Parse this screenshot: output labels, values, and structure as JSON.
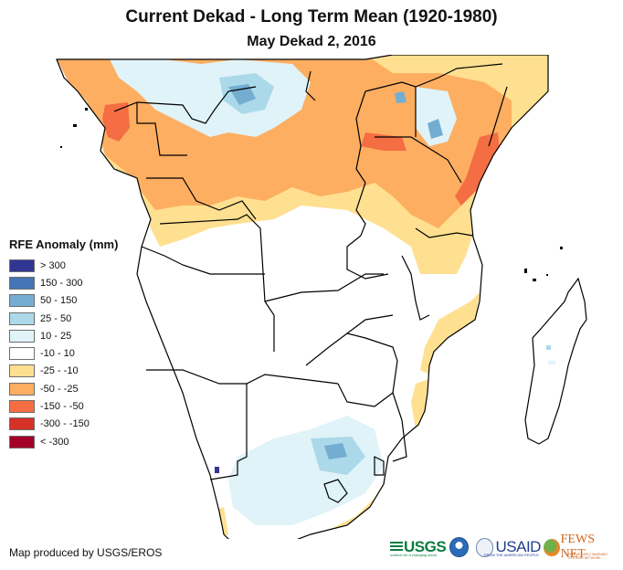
{
  "header": {
    "title": "Current Dekad - Long Term Mean (1920-1980)",
    "subtitle": "May Dekad 2, 2016"
  },
  "legend": {
    "title": "RFE Anomaly (mm)",
    "items": [
      {
        "label": "> 300",
        "color": "#313695"
      },
      {
        "label": "150 - 300",
        "color": "#4575b4"
      },
      {
        "label": "50 - 150",
        "color": "#74add1"
      },
      {
        "label": "25 - 50",
        "color": "#abd9e9"
      },
      {
        "label": "10 - 25",
        "color": "#e0f3f8"
      },
      {
        "label": "-10 - 10",
        "color": "#ffffff"
      },
      {
        "label": "-25 - -10",
        "color": "#fee090"
      },
      {
        "label": "-50 - -25",
        "color": "#fdae61"
      },
      {
        "label": "-150 - -50",
        "color": "#f46d43"
      },
      {
        "label": "-300 - -150",
        "color": "#d73027"
      },
      {
        "label": "< -300",
        "color": "#a50026"
      }
    ]
  },
  "map": {
    "region": "Southern and Central Africa",
    "colors": {
      "border": "#000000",
      "land": "#ffffff"
    }
  },
  "footer": {
    "credit": "Map produced by USGS/EROS",
    "logos": {
      "usgs": "USGS",
      "usgs_tagline": "science for a changing world",
      "usaid": "USAID",
      "usaid_tagline": "FROM THE AMERICAN PEOPLE",
      "fews": "FEWS NET",
      "fews_tagline": "FAMINE EARLY WARNING SYSTEMS NETWORK"
    }
  }
}
